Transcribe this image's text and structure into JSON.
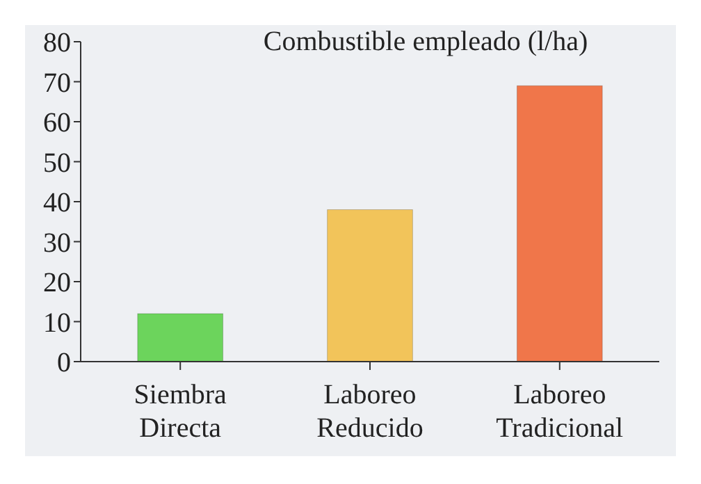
{
  "chart_data": {
    "type": "bar",
    "title": "Combustible empleado (l/ha)",
    "categories": [
      "Siembra Directa",
      "Laboreo Reducido",
      "Laboreo Tradicional"
    ],
    "values": [
      12,
      38,
      69
    ],
    "colors": [
      "#6cd45c",
      "#f2c45a",
      "#f0764a"
    ],
    "ylim": [
      0,
      80
    ],
    "yticks": [
      0,
      10,
      20,
      30,
      40,
      50,
      60,
      70,
      80
    ]
  }
}
